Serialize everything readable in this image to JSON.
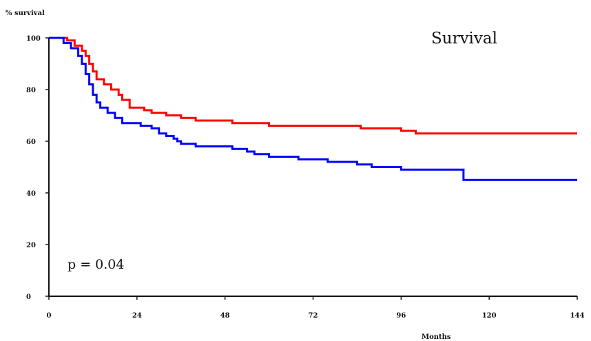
{
  "chart_data": {
    "type": "line",
    "title": "Survival",
    "xlabel": "Months",
    "ylabel": "% survival",
    "annotation": "p = 0.04",
    "xlim": [
      0,
      144
    ],
    "ylim": [
      0,
      100
    ],
    "x_ticks": [
      0,
      24,
      48,
      72,
      96,
      120,
      144
    ],
    "y_ticks": [
      0,
      20,
      40,
      60,
      80,
      100
    ],
    "grid": false,
    "line_shape": "step",
    "series": [
      {
        "color": "#ff0000",
        "x": [
          0,
          5,
          7,
          9,
          10,
          11,
          12,
          13,
          15,
          17,
          19,
          20,
          22,
          26,
          28,
          32,
          36,
          40,
          45,
          48,
          50,
          55,
          60,
          65,
          72,
          80,
          85,
          89,
          96,
          99,
          100,
          105,
          120,
          144
        ],
        "y": [
          100,
          99,
          97,
          95,
          93,
          90,
          87,
          84,
          82,
          80,
          78,
          76,
          73,
          72,
          71,
          70,
          69,
          68,
          68,
          68,
          67,
          67,
          66,
          66,
          66,
          66,
          65,
          65,
          64,
          64,
          63,
          63,
          63,
          63
        ]
      },
      {
        "color": "#0000ff",
        "x": [
          0,
          4,
          6,
          8,
          9,
          10,
          11,
          12,
          13,
          14,
          16,
          18,
          20,
          25,
          28,
          30,
          32,
          34,
          35,
          36,
          40,
          44,
          48,
          50,
          52,
          54,
          56,
          60,
          64,
          68,
          72,
          76,
          84,
          88,
          96,
          108,
          112,
          113,
          144
        ],
        "y": [
          100,
          98,
          96,
          93,
          90,
          86,
          82,
          78,
          75,
          73,
          71,
          69,
          67,
          66,
          65,
          63,
          62,
          61,
          60,
          59,
          58,
          58,
          58,
          57,
          57,
          56,
          55,
          54,
          54,
          53,
          53,
          52,
          51,
          50,
          49,
          49,
          49,
          45,
          45
        ]
      }
    ]
  }
}
